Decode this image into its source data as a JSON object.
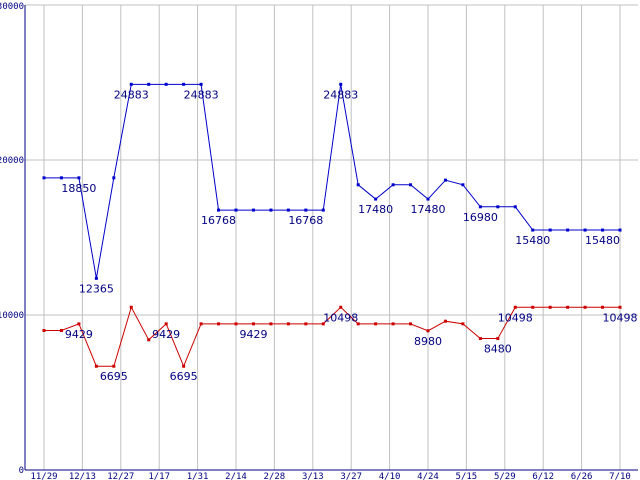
{
  "chart_data": {
    "type": "line",
    "title": "",
    "xlabel": "",
    "ylabel": "",
    "ylim": [
      0,
      30000
    ],
    "y_ticks": [
      "0",
      "10000",
      "20000",
      "30000"
    ],
    "x_tick_labels": [
      "11/29",
      "12/13",
      "12/27",
      "1/17",
      "1/31",
      "2/14",
      "2/28",
      "3/13",
      "3/27",
      "4/10",
      "4/24",
      "5/15",
      "5/29",
      "6/12",
      "6/26",
      "7/10"
    ],
    "grid": true,
    "colors": {
      "background": "#ffffff",
      "grid": "#c0c0c0",
      "axis": "#000080",
      "labels": "#000080"
    },
    "series": [
      {
        "color": "#0000cc",
        "values": [
          18850,
          18850,
          18850,
          12365,
          18850,
          24883,
          24883,
          24883,
          24883,
          24883,
          16768,
          16768,
          16768,
          16768,
          16768,
          16768,
          16768,
          24883,
          18400,
          17480,
          18400,
          18400,
          17480,
          18700,
          18400,
          16980,
          16980,
          16980,
          15480,
          15480,
          15480,
          15480,
          15480,
          15480
        ],
        "labels": [
          {
            "text": "18850",
            "index": 2
          },
          {
            "text": "12365",
            "index": 3
          },
          {
            "text": "24883",
            "index": 5
          },
          {
            "text": "24883",
            "index": 9
          },
          {
            "text": "16768",
            "index": 10
          },
          {
            "text": "16768",
            "index": 15
          },
          {
            "text": "24883",
            "index": 17
          },
          {
            "text": "17480",
            "index": 19
          },
          {
            "text": "17480",
            "index": 22
          },
          {
            "text": "16980",
            "index": 25
          },
          {
            "text": "15480",
            "index": 28
          },
          {
            "text": "15480",
            "index": 32
          }
        ]
      },
      {
        "color": "#cc0000",
        "values": [
          9000,
          9000,
          9429,
          6695,
          6695,
          10498,
          8400,
          9429,
          6695,
          9429,
          9429,
          9429,
          9429,
          9429,
          9429,
          9429,
          9429,
          10498,
          9429,
          9429,
          9429,
          9429,
          8980,
          9600,
          9429,
          8480,
          8480,
          10498,
          10498,
          10498,
          10498,
          10498,
          10498,
          10498
        ],
        "labels": [
          {
            "text": "9429",
            "index": 2
          },
          {
            "text": "6695",
            "index": 4
          },
          {
            "text": "9429",
            "index": 7
          },
          {
            "text": "6695",
            "index": 8
          },
          {
            "text": "9429",
            "index": 12
          },
          {
            "text": "10498",
            "index": 17
          },
          {
            "text": "8980",
            "index": 22
          },
          {
            "text": "8480",
            "index": 26
          },
          {
            "text": "10498",
            "index": 27
          },
          {
            "text": "10498",
            "index": 33
          }
        ]
      }
    ]
  }
}
